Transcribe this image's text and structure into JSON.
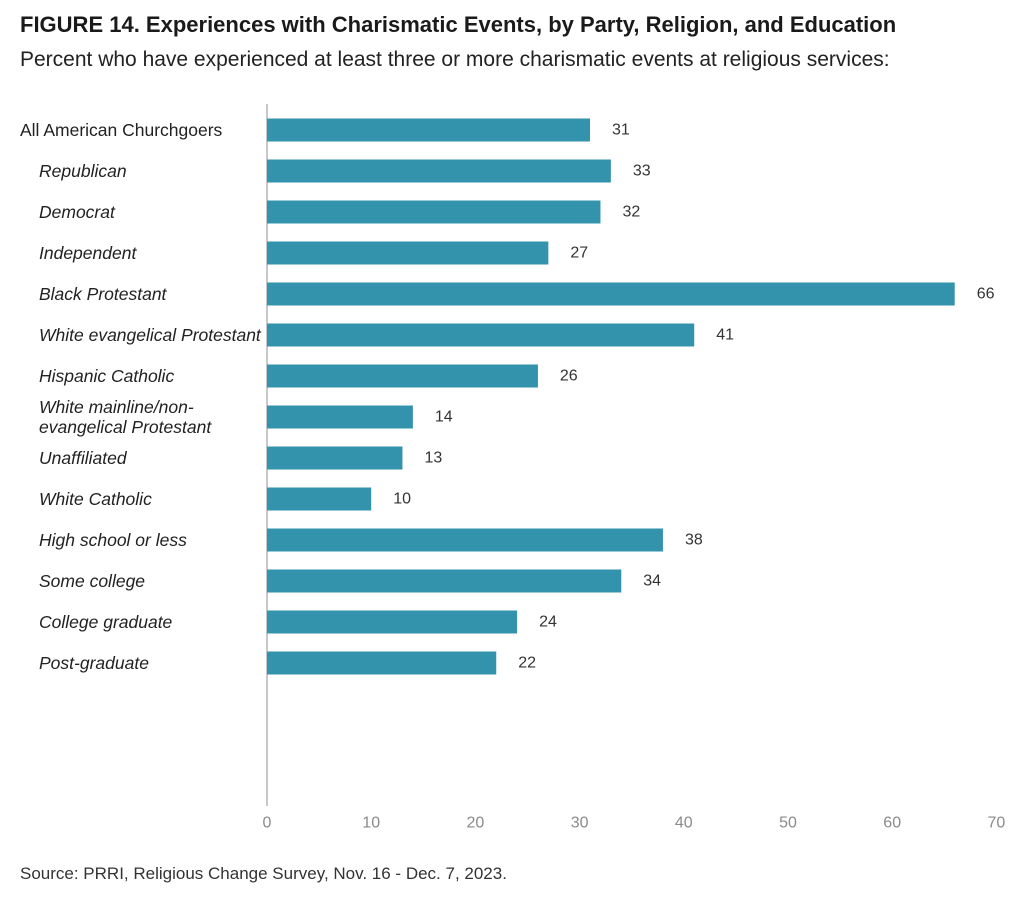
{
  "header": {
    "title": "FIGURE 14. Experiences with Charismatic Events, by Party, Religion, and Education",
    "subtitle": "Percent who have experienced at least three or more charismatic events at religious services:"
  },
  "footer": {
    "source": "Source: PRRI, Religious Change Survey, Nov. 16 - Dec. 7, 2023."
  },
  "colors": {
    "bar": "#3392ac",
    "axis": "#c8c8c8"
  },
  "chart_data": {
    "type": "bar",
    "orientation": "horizontal",
    "title": "FIGURE 14. Experiences with Charismatic Events, by Party, Religion, and Education",
    "subtitle": "Percent who have experienced at least three or more charismatic events at religious services:",
    "xlim": [
      0,
      70
    ],
    "xticks": [
      0,
      10,
      20,
      30,
      40,
      50,
      60,
      70
    ],
    "grid": false,
    "groups": [
      {
        "items": [
          {
            "label": "All American Churchgoers",
            "value": 31,
            "italic": false
          }
        ]
      },
      {
        "items": [
          {
            "label": "Republican",
            "value": 33,
            "italic": true
          },
          {
            "label": "Democrat",
            "value": 32,
            "italic": true
          },
          {
            "label": "Independent",
            "value": 27,
            "italic": true
          }
        ]
      },
      {
        "items": [
          {
            "label": "Black Protestant",
            "value": 66,
            "italic": true
          },
          {
            "label": "White evangelical Protestant",
            "value": 41,
            "italic": true
          },
          {
            "label": "Hispanic Catholic",
            "value": 26,
            "italic": true
          },
          {
            "label": [
              "White mainline/non-",
              "evangelical Protestant"
            ],
            "value": 14,
            "italic": true
          },
          {
            "label": "Unaffiliated",
            "value": 13,
            "italic": true
          },
          {
            "label": "White Catholic",
            "value": 10,
            "italic": true
          }
        ]
      },
      {
        "items": [
          {
            "label": "High school or less",
            "value": 38,
            "italic": true
          },
          {
            "label": "Some college",
            "value": 34,
            "italic": true
          },
          {
            "label": "College graduate",
            "value": 24,
            "italic": true
          },
          {
            "label": "Post-graduate",
            "value": 22,
            "italic": true
          }
        ]
      }
    ]
  }
}
